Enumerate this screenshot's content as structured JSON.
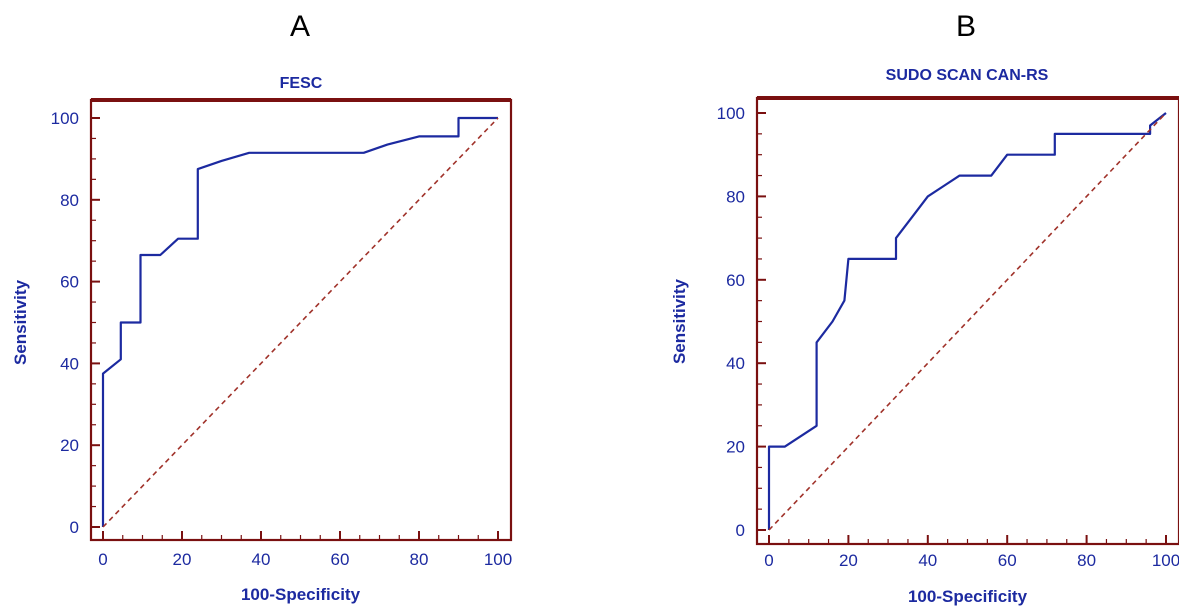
{
  "figure": {
    "colors": {
      "frame": "#7a1010",
      "curve": "#1c2aa0",
      "diagonal": "#a0322a",
      "text": "#1c2aa0",
      "panel_letter": "#000000"
    }
  },
  "chart_data": [
    {
      "type": "line",
      "panel_label": "A",
      "title": "FESC",
      "xlabel": "100-Specificity",
      "ylabel": "Sensitivity",
      "xlim": [
        0,
        100
      ],
      "ylim": [
        0,
        100
      ],
      "xticks": [
        0,
        20,
        40,
        60,
        80,
        100
      ],
      "yticks": [
        0,
        20,
        40,
        60,
        80,
        100
      ],
      "grid": false,
      "series": [
        {
          "x": [
            0,
            0,
            0,
            0,
            0,
            4.5,
            4.5,
            9.5,
            9.5,
            14.5,
            19,
            24,
            24,
            30,
            37,
            50,
            66,
            72,
            80,
            90,
            90,
            100
          ],
          "y": [
            0,
            20,
            20,
            37.5,
            37.5,
            41,
            50,
            50,
            66.5,
            66.5,
            70.5,
            70.5,
            87.5,
            89.5,
            91.5,
            91.5,
            91.5,
            93.5,
            95.5,
            95.5,
            100,
            100
          ]
        },
        {
          "style": "dashed",
          "x": [
            0,
            100
          ],
          "y": [
            0,
            100
          ]
        }
      ]
    },
    {
      "type": "line",
      "panel_label": "B",
      "title": "SUDO SCAN CAN-RS",
      "xlabel": "100-Specificity",
      "ylabel": "Sensitivity",
      "xlim": [
        0,
        100
      ],
      "ylim": [
        0,
        100
      ],
      "xticks": [
        0,
        20,
        40,
        60,
        80,
        100
      ],
      "yticks": [
        0,
        20,
        40,
        60,
        80,
        100
      ],
      "grid": false,
      "series": [
        {
          "x": [
            0,
            0,
            4,
            12,
            12,
            16,
            19,
            20,
            20,
            32,
            32,
            36,
            40,
            44,
            48,
            56,
            60,
            60,
            72,
            72,
            96,
            96,
            100
          ],
          "y": [
            0,
            20,
            20,
            25,
            45,
            50,
            55,
            65,
            65,
            65,
            70,
            75,
            80,
            82.5,
            85,
            85,
            90,
            90,
            90,
            95,
            95,
            97,
            100
          ]
        },
        {
          "style": "dashed",
          "x": [
            0,
            100
          ],
          "y": [
            0,
            100
          ]
        }
      ]
    }
  ]
}
